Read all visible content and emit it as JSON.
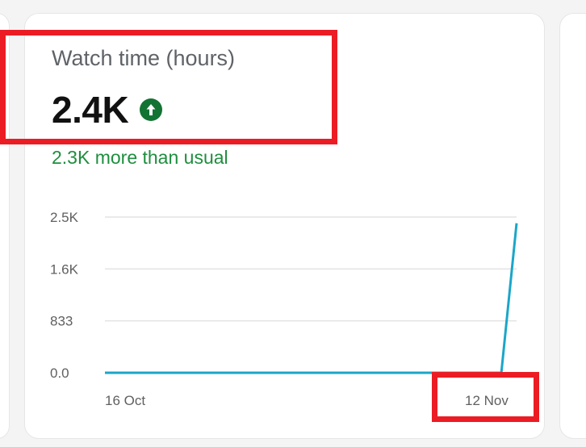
{
  "metric": {
    "title": "Watch time (hours)",
    "value": "2.4K",
    "trend_icon": "arrow-up-circle-icon",
    "trend_direction": "up",
    "delta_text": "2.3K more than usual"
  },
  "colors": {
    "accent_green": "#1e8e3e",
    "line": "#1ba6c9",
    "highlight": "#ec1c24"
  },
  "chart_data": {
    "type": "line",
    "y_ticks": [
      "2.5K",
      "1.6K",
      "833",
      "0.0"
    ],
    "ylim": [
      0,
      2500
    ],
    "x_ticks": [
      "16 Oct",
      "12 Nov"
    ],
    "grid": true,
    "series": [
      {
        "values": [
          0,
          0,
          0,
          0,
          0,
          0,
          0,
          0,
          0,
          0,
          0,
          0,
          0,
          0,
          0,
          0,
          0,
          0,
          0,
          0,
          0,
          0,
          0,
          0,
          0,
          0,
          0,
          2400
        ]
      }
    ]
  }
}
